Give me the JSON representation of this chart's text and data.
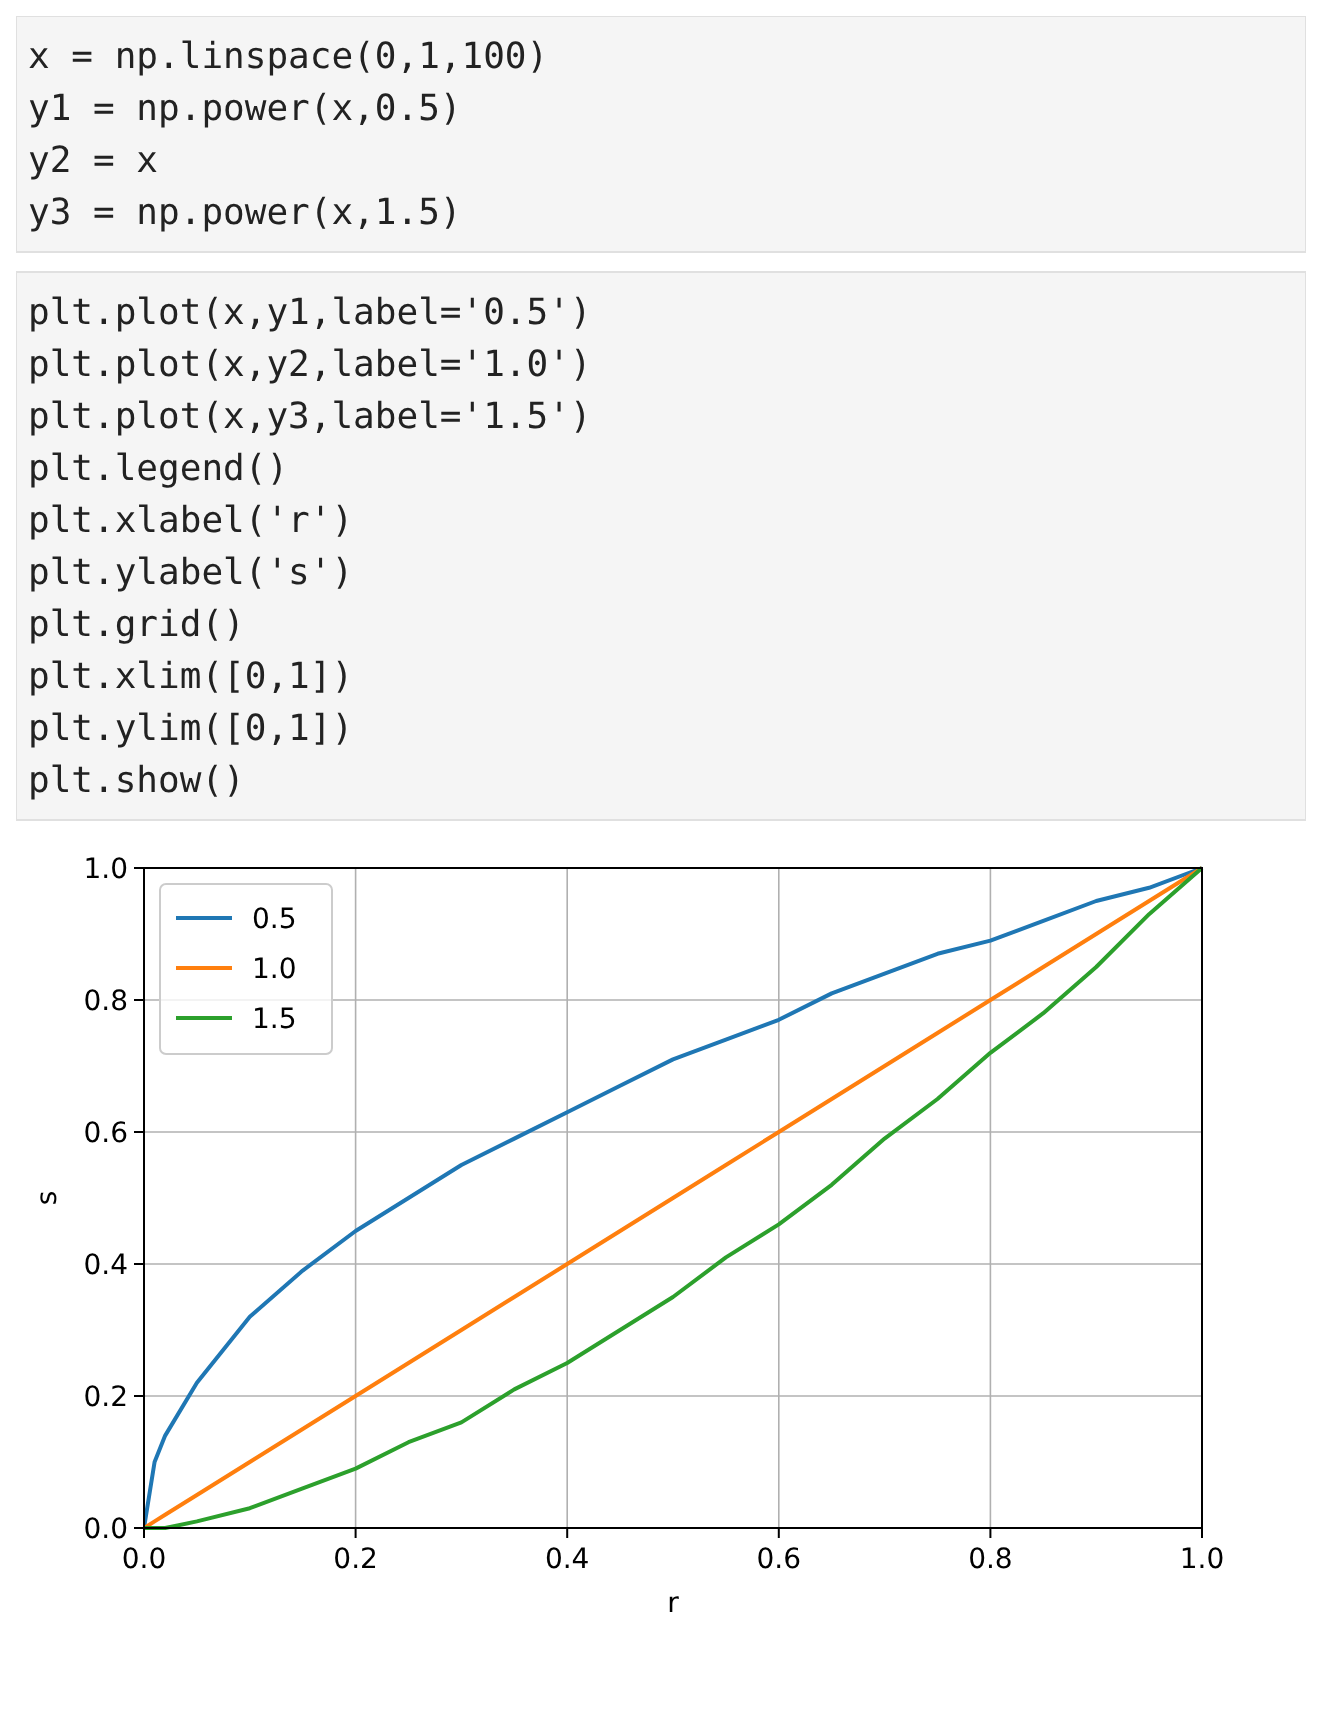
{
  "chart_data": {
    "type": "line",
    "xlabel": "r",
    "ylabel": "s",
    "annotations": [
      "x = np.linspace(0,1,100)\ny1 = np.power(x,0.5)\ny2 = x\ny3 = np.power(x,1.5)",
      "plt.plot(x,y1,label='0.5')\nplt.plot(x,y2,label='1.0')\nplt.plot(x,y3,label='1.5')\nplt.legend()\nplt.xlabel('r')\nplt.ylabel('s')\nplt.grid()\nplt.xlim([0,1])\nplt.ylim([0,1])\nplt.show()"
    ],
    "x": [
      0,
      0.01,
      0.02,
      0.05,
      0.1,
      0.15,
      0.2,
      0.25,
      0.3,
      0.35,
      0.4,
      0.45,
      0.5,
      0.55,
      0.6,
      0.65,
      0.7,
      0.75,
      0.8,
      0.85,
      0.9,
      0.95,
      1
    ],
    "series": [
      {
        "name": "0.5",
        "color": "#1f77b4",
        "values": [
          0,
          0.1,
          0.14,
          0.22,
          0.32,
          0.39,
          0.45,
          0.5,
          0.55,
          0.59,
          0.63,
          0.67,
          0.71,
          0.74,
          0.77,
          0.81,
          0.84,
          0.87,
          0.89,
          0.92,
          0.95,
          0.97,
          1
        ]
      },
      {
        "name": "1.0",
        "color": "#ff7f0e",
        "values": [
          0,
          0.01,
          0.02,
          0.05,
          0.1,
          0.15,
          0.2,
          0.25,
          0.3,
          0.35,
          0.4,
          0.45,
          0.5,
          0.55,
          0.6,
          0.65,
          0.7,
          0.75,
          0.8,
          0.85,
          0.9,
          0.95,
          1
        ]
      },
      {
        "name": "1.5",
        "color": "#2ca02c",
        "values": [
          0,
          0,
          0,
          0.01,
          0.03,
          0.06,
          0.09,
          0.13,
          0.16,
          0.21,
          0.25,
          0.3,
          0.35,
          0.41,
          0.46,
          0.52,
          0.59,
          0.65,
          0.72,
          0.78,
          0.85,
          0.93,
          1
        ]
      }
    ],
    "xlim": [
      0,
      1
    ],
    "ylim": [
      0,
      1
    ],
    "xticks": [
      {
        "value": 0,
        "label": "0.0"
      },
      {
        "value": 0.2,
        "label": "0.2"
      },
      {
        "value": 0.4,
        "label": "0.4"
      },
      {
        "value": 0.6,
        "label": "0.6"
      },
      {
        "value": 0.8,
        "label": "0.8"
      },
      {
        "value": 1,
        "label": "1.0"
      }
    ],
    "yticks": [
      {
        "value": 0,
        "label": "0.0"
      },
      {
        "value": 0.2,
        "label": "0.2"
      },
      {
        "value": 0.4,
        "label": "0.4"
      },
      {
        "value": 0.6,
        "label": "0.6"
      },
      {
        "value": 0.8,
        "label": "0.8"
      },
      {
        "value": 1,
        "label": "1.0"
      }
    ],
    "grid": true,
    "legend": "top left"
  }
}
